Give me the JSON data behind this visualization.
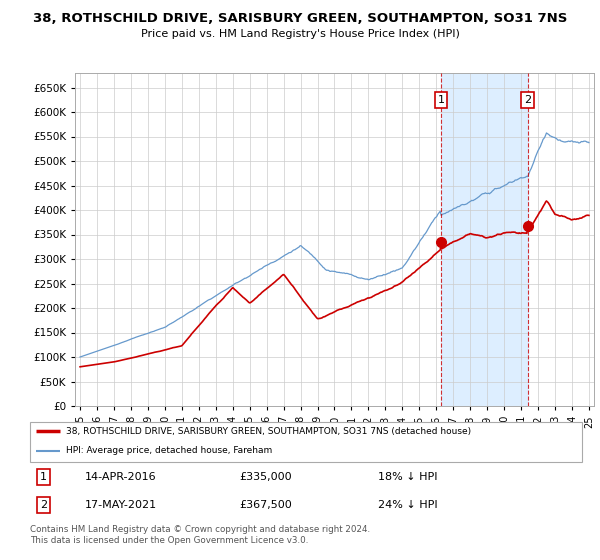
{
  "title": "38, ROTHSCHILD DRIVE, SARISBURY GREEN, SOUTHAMPTON, SO31 7NS",
  "subtitle": "Price paid vs. HM Land Registry's House Price Index (HPI)",
  "ylim": [
    0,
    680000
  ],
  "yticks": [
    0,
    50000,
    100000,
    150000,
    200000,
    250000,
    300000,
    350000,
    400000,
    450000,
    500000,
    550000,
    600000,
    650000
  ],
  "x_start_year": 1995,
  "x_end_year": 2025,
  "background_color": "#ffffff",
  "grid_color": "#cccccc",
  "sale1_date": "14-APR-2016",
  "sale1_price": 335000,
  "sale1_label": "18% ↓ HPI",
  "sale1_x": 2016.28,
  "sale2_date": "17-MAY-2021",
  "sale2_price": 367500,
  "sale2_label": "24% ↓ HPI",
  "sale2_x": 2021.38,
  "legend_line1": "38, ROTHSCHILD DRIVE, SARISBURY GREEN, SOUTHAMPTON, SO31 7NS (detached house)",
  "legend_line2": "HPI: Average price, detached house, Fareham",
  "footer": "Contains HM Land Registry data © Crown copyright and database right 2024.\nThis data is licensed under the Open Government Licence v3.0.",
  "red_color": "#cc0000",
  "blue_color": "#6699cc",
  "shade_color": "#ddeeff"
}
